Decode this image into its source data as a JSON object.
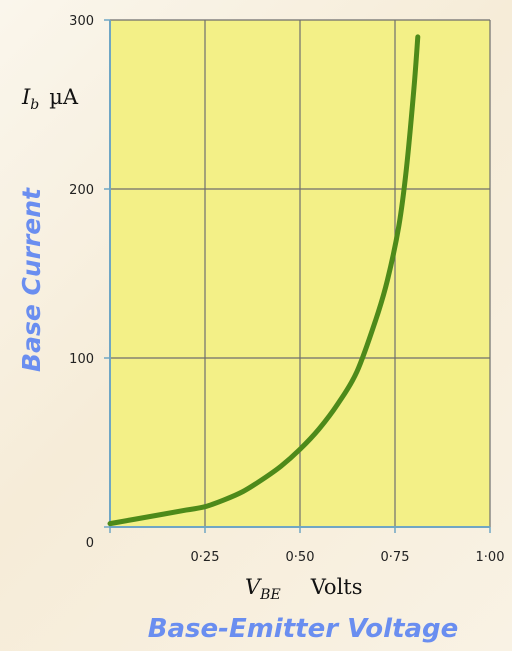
{
  "chart_data": {
    "type": "line",
    "title": "",
    "xlabel": "Base-Emitter Voltage",
    "ylabel": "Base Current",
    "x_unit_symbol": "V",
    "x_unit_subscript": "BE",
    "x_unit": "Volts",
    "y_unit_symbol": "I",
    "y_unit_subscript": "b",
    "y_unit": "µA",
    "xlim": [
      0,
      1.0
    ],
    "ylim": [
      0,
      300
    ],
    "x_ticks": [
      {
        "value": 0,
        "label": "0"
      },
      {
        "value": 0.25,
        "label": "0·25"
      },
      {
        "value": 0.5,
        "label": "0·50"
      },
      {
        "value": 0.75,
        "label": "0·75"
      },
      {
        "value": 1.0,
        "label": "1·00"
      }
    ],
    "y_ticks": [
      {
        "value": 100,
        "label": "100"
      },
      {
        "value": 200,
        "label": "200"
      },
      {
        "value": 300,
        "label": "300"
      }
    ],
    "grid": true,
    "series": [
      {
        "x": [
          0.0,
          0.1,
          0.2,
          0.25,
          0.3,
          0.35,
          0.4,
          0.45,
          0.5,
          0.55,
          0.6,
          0.65,
          0.7,
          0.73,
          0.76,
          0.78,
          0.8,
          0.81
        ],
        "y": [
          2,
          6,
          10,
          12,
          16,
          21,
          28,
          36,
          46,
          58,
          73,
          92,
          123,
          146,
          178,
          212,
          260,
          290
        ]
      }
    ],
    "colors": {
      "plot_background": "#f3f087",
      "grid": "#6e6e6e",
      "axis": "#6fa6c4",
      "curve": "#4d8a1a",
      "label": "#6a8ef0"
    }
  }
}
